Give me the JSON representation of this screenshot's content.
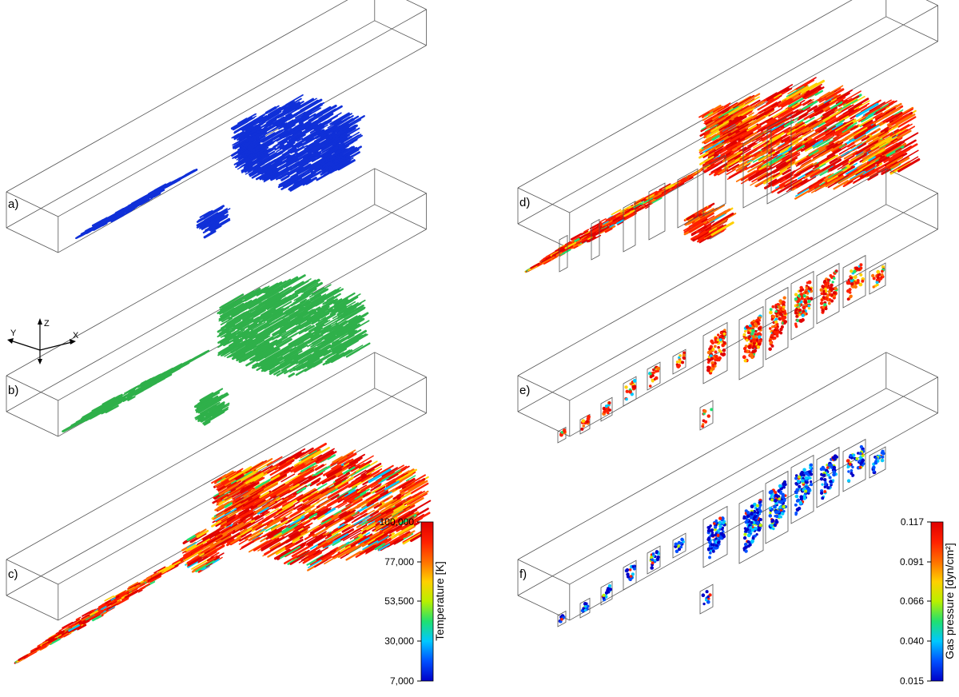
{
  "panels": [
    {
      "label": "a)",
      "coloring": "uniform",
      "color": "#1030d8"
    },
    {
      "label": "b)",
      "coloring": "uniform",
      "color": "#2fb04a"
    },
    {
      "label": "c)",
      "coloring": "temperature"
    },
    {
      "label": "d)",
      "coloring": "temperature"
    },
    {
      "label": "e)",
      "coloring": "temperature"
    },
    {
      "label": "f)",
      "coloring": "pressure"
    }
  ],
  "axes": {
    "x": "X",
    "y": "Y",
    "z": "Z"
  },
  "colorbars": [
    {
      "title": "Temperature [K]",
      "ticks": [
        "100,000",
        "77,000",
        "53,500",
        "30,000",
        "7,000"
      ],
      "range": [
        7000,
        100000
      ]
    },
    {
      "title": "Gas pressure [dyn/cm²]",
      "ticks": [
        "0.117",
        "0.091",
        "0.066",
        "0.040",
        "0.015"
      ],
      "range": [
        0.015,
        0.117
      ]
    }
  ],
  "colors": {
    "jet": [
      "#0000c8",
      "#0050ff",
      "#00c8ff",
      "#20e070",
      "#b8f000",
      "#ffd000",
      "#ff7000",
      "#ff2000",
      "#e00000"
    ],
    "box_line": "#555555"
  }
}
